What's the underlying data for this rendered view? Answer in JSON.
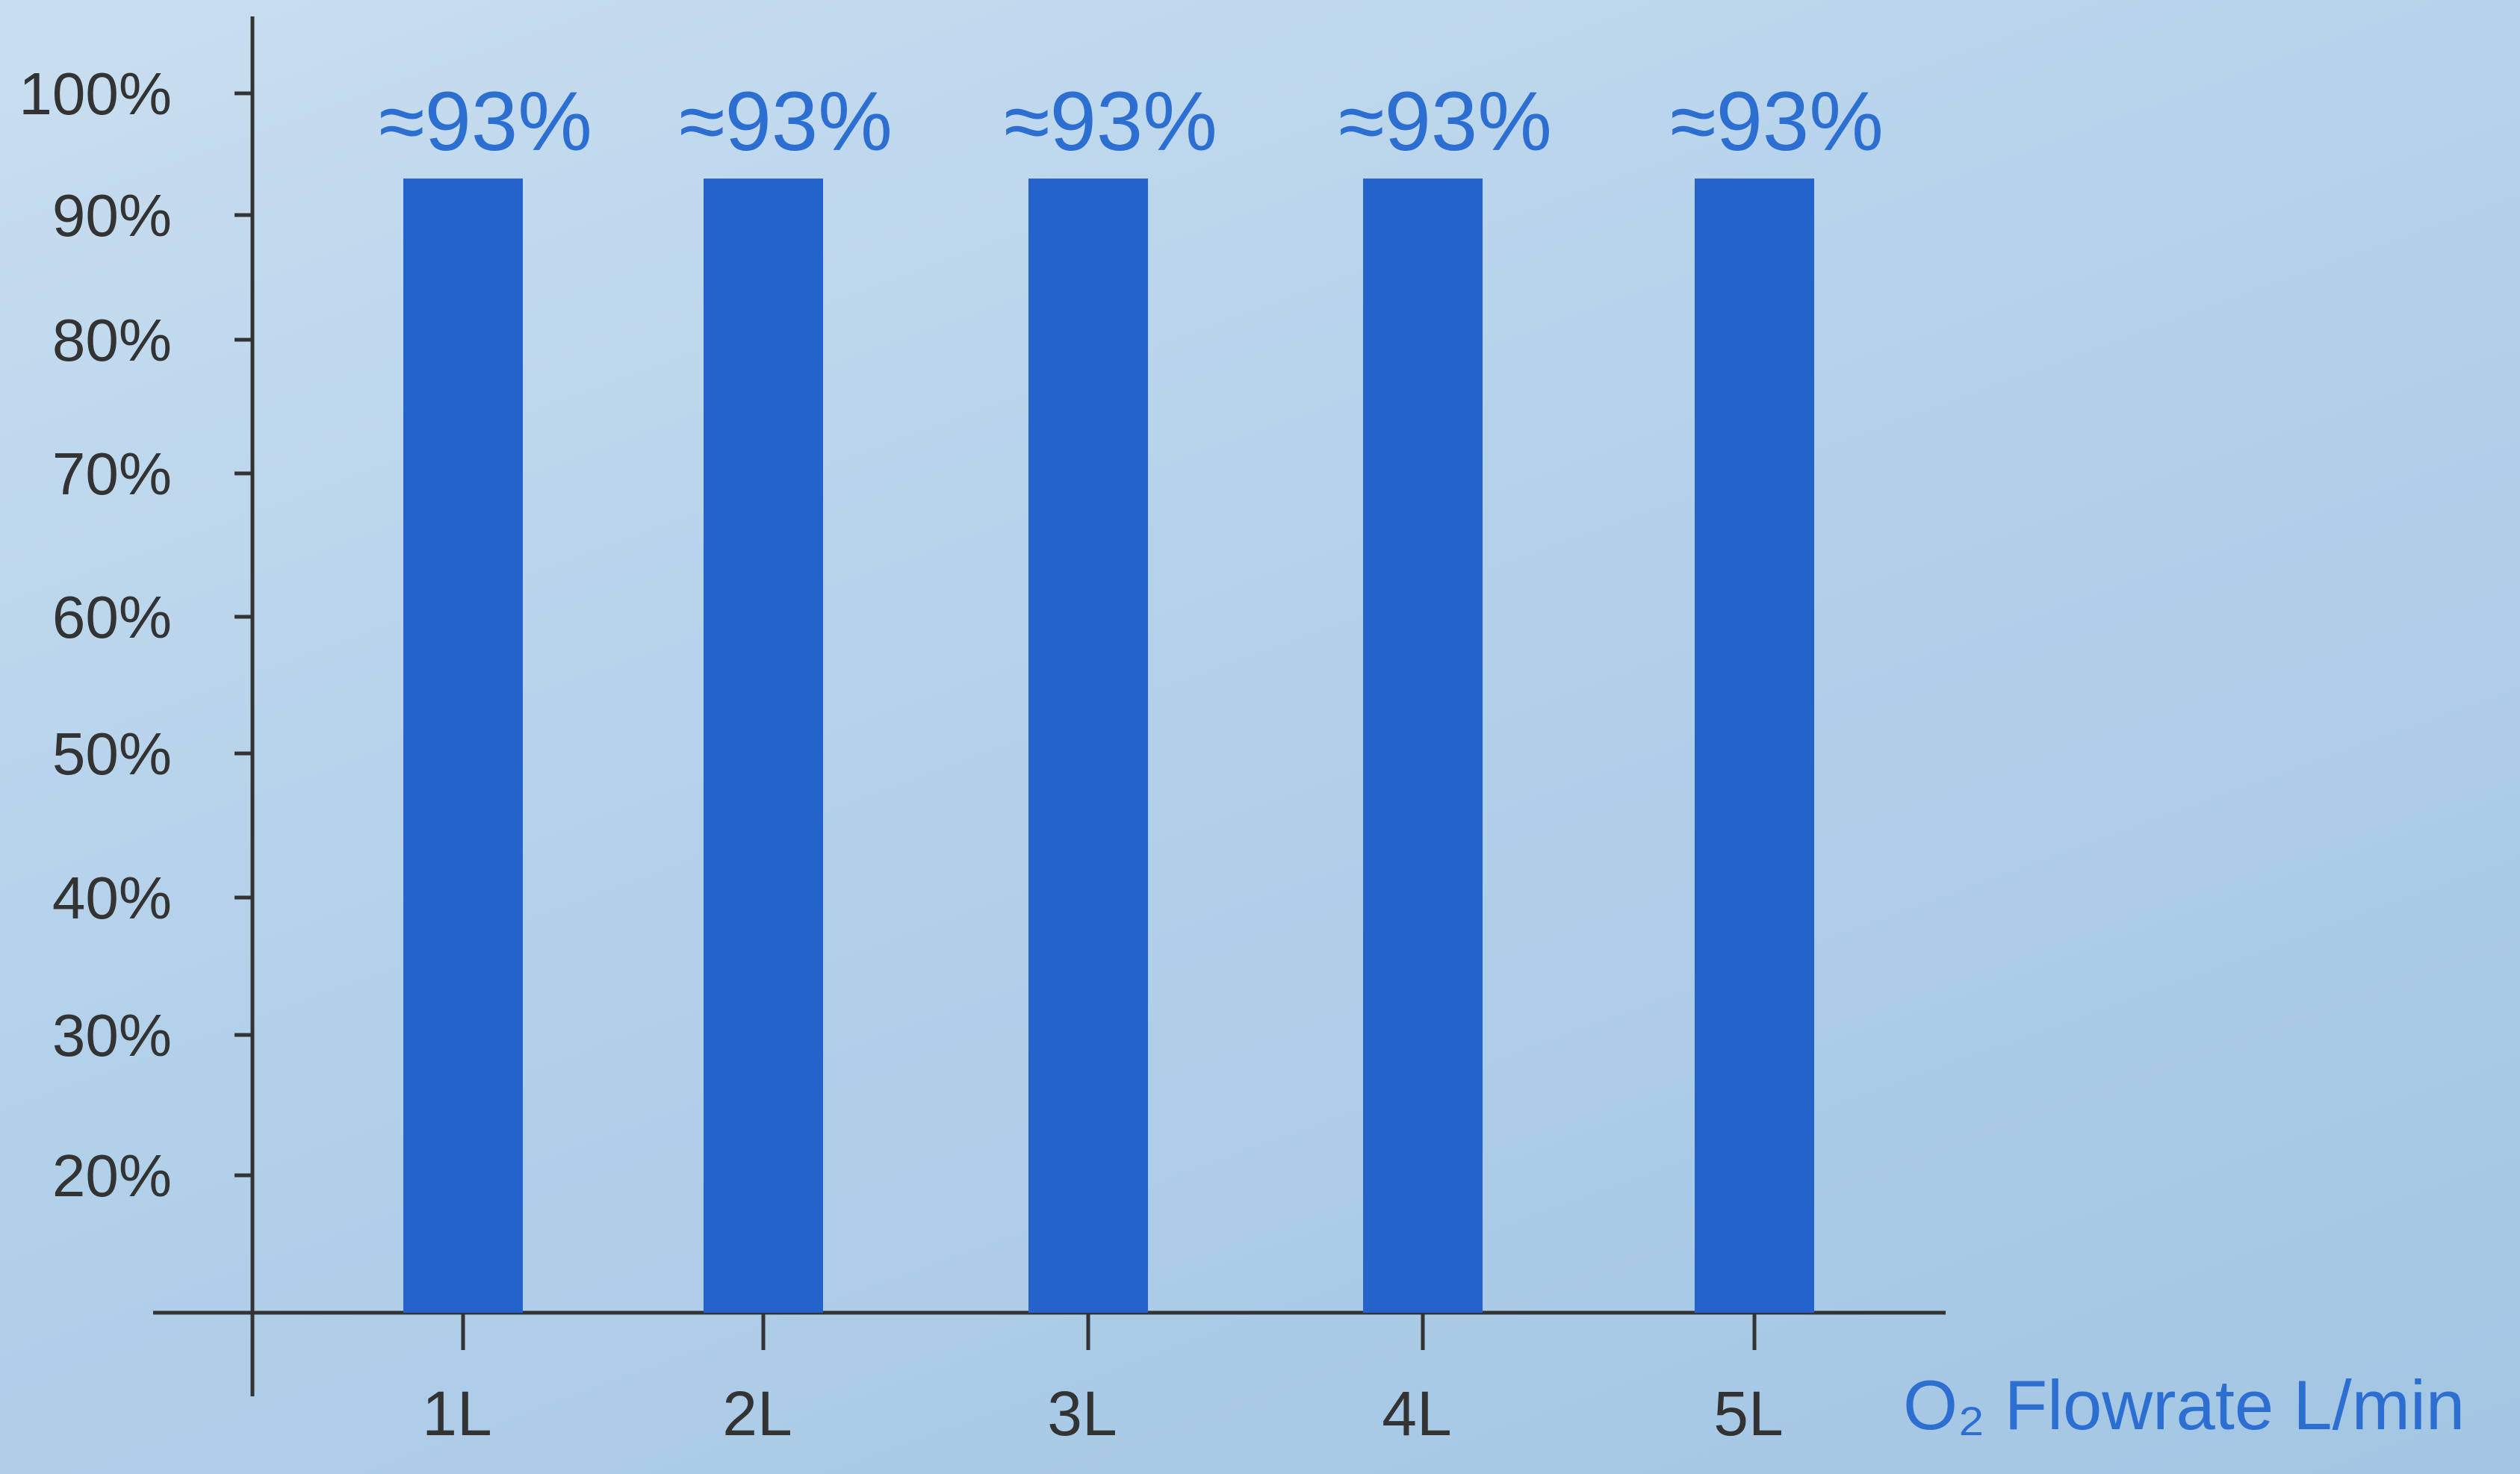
{
  "chart_data": {
    "type": "bar",
    "title": "",
    "xlabel": "O₂ Flowrate L/min",
    "ylabel": "",
    "categories": [
      "1L",
      "2L",
      "3L",
      "4L",
      "5L"
    ],
    "values": [
      93,
      93,
      93,
      93,
      93
    ],
    "data_labels": [
      "≈93%",
      "≈93%",
      "≈93%",
      "≈93%",
      "≈93%"
    ],
    "y_ticks": [
      20,
      30,
      40,
      50,
      60,
      70,
      80,
      90,
      100
    ],
    "y_tick_labels": [
      "20%",
      "30%",
      "40%",
      "50%",
      "60%",
      "70%",
      "80%",
      "90%",
      "100%"
    ],
    "ylim": [
      10,
      100
    ],
    "grid": false,
    "legend": "none"
  },
  "colors": {
    "bar": "#2462cc",
    "label": "#2d6fd0",
    "axis": "#333333",
    "tick_text": "#333333"
  }
}
